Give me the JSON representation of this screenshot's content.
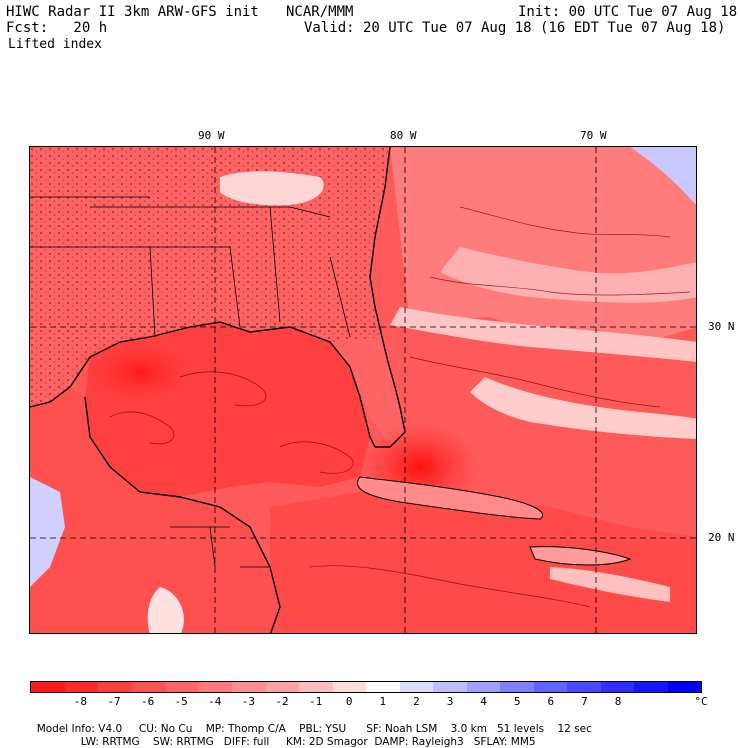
{
  "header": {
    "model_title": "HIWC Radar II 3km ARW-GFS init",
    "org": "NCAR/MMM",
    "init": "Init: 00 UTC Tue 07 Aug 18",
    "fcst": "Fcst:   20 h",
    "valid": "Valid: 20 UTC Tue 07 Aug 18 (16 EDT Tue 07 Aug 18)",
    "field": "Lifted index"
  },
  "map": {
    "longitude_labels": [
      "90 W",
      "80 W",
      "70 W"
    ],
    "latitude_labels": [
      "30 N",
      "20 N"
    ]
  },
  "colorbar": {
    "ticks": [
      "-8",
      "-7",
      "-6",
      "-5",
      "-4",
      "-3",
      "-2",
      "-1",
      "0",
      "1",
      "2",
      "3",
      "4",
      "5",
      "6",
      "7",
      "8"
    ],
    "unit": "°C",
    "colors": [
      "#ff1a1a",
      "#ff2a2a",
      "#ff3e3e",
      "#ff5252",
      "#ff6666",
      "#ff7a7a",
      "#ff8e8e",
      "#ffa3a3",
      "#ffbdbd",
      "#ffdcdc",
      "#ffffff",
      "#dcdcff",
      "#bdbdff",
      "#a0a0ff",
      "#8080ff",
      "#6262ff",
      "#4848ff",
      "#2f2fff",
      "#1515ff",
      "#0000ff"
    ]
  },
  "footer": {
    "line1": {
      "model_info": "Model Info: V4.0",
      "cu": "CU: No Cu",
      "mp": "MP: Thomp C/A",
      "pbl": "PBL: YSU",
      "sf": "SF: Noah LSM",
      "res": "3.0 km",
      "levels": "51 levels",
      "dt": "12 sec"
    },
    "line2": {
      "lw": "LW: RRTMG",
      "sw": "SW: RRTMG",
      "diff": "DIFF: full",
      "km": "KM: 2D Smagor",
      "damp": "DAMP: Rayleigh3",
      "sflay": "SFLAY: MM5"
    }
  }
}
